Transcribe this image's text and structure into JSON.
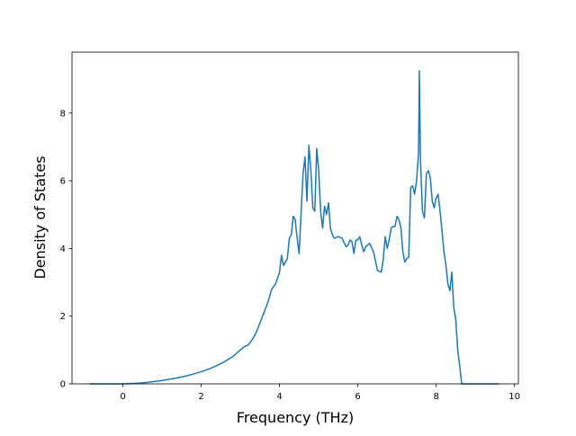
{
  "chart_data": {
    "type": "line",
    "title": "",
    "xlabel": "Frequency (THz)",
    "ylabel": "Density of States",
    "xlim": [
      -1.3,
      10.1
    ],
    "ylim": [
      0,
      9.8
    ],
    "xticks": [
      0,
      2,
      4,
      6,
      8,
      10
    ],
    "yticks": [
      0,
      2,
      4,
      6,
      8
    ],
    "grid": false,
    "legend": "none",
    "series": [
      {
        "color": "#1f77b4",
        "x": [
          -0.85,
          -0.6,
          -0.4,
          -0.2,
          0.0,
          0.2,
          0.4,
          0.6,
          0.8,
          1.0,
          1.2,
          1.4,
          1.6,
          1.8,
          2.0,
          2.2,
          2.4,
          2.6,
          2.8,
          2.9,
          3.0,
          3.1,
          3.2,
          3.3,
          3.4,
          3.5,
          3.6,
          3.7,
          3.8,
          3.9,
          4.0,
          4.05,
          4.1,
          4.2,
          4.25,
          4.3,
          4.35,
          4.4,
          4.45,
          4.5,
          4.6,
          4.65,
          4.7,
          4.75,
          4.8,
          4.85,
          4.9,
          4.95,
          5.0,
          5.05,
          5.1,
          5.15,
          5.2,
          5.25,
          5.3,
          5.35,
          5.4,
          5.5,
          5.6,
          5.7,
          5.75,
          5.8,
          5.85,
          5.9,
          5.95,
          6.0,
          6.05,
          6.1,
          6.15,
          6.2,
          6.3,
          6.4,
          6.5,
          6.6,
          6.65,
          6.7,
          6.75,
          6.8,
          6.85,
          6.9,
          6.95,
          7.0,
          7.05,
          7.1,
          7.15,
          7.2,
          7.25,
          7.3,
          7.35,
          7.4,
          7.45,
          7.5,
          7.55,
          7.57,
          7.6,
          7.65,
          7.7,
          7.75,
          7.8,
          7.85,
          7.9,
          7.95,
          8.0,
          8.05,
          8.1,
          8.15,
          8.2,
          8.25,
          8.3,
          8.35,
          8.4,
          8.45,
          8.5,
          8.55,
          8.6,
          8.65,
          8.7,
          9.0,
          9.3,
          9.6
        ],
        "y": [
          0,
          0,
          0,
          0,
          0,
          0.01,
          0.02,
          0.04,
          0.07,
          0.1,
          0.14,
          0.18,
          0.23,
          0.29,
          0.36,
          0.44,
          0.54,
          0.66,
          0.8,
          0.9,
          1.0,
          1.1,
          1.15,
          1.3,
          1.5,
          1.8,
          2.1,
          2.4,
          2.8,
          2.95,
          3.3,
          3.8,
          3.5,
          3.7,
          4.3,
          4.4,
          4.95,
          4.85,
          4.3,
          3.85,
          6.2,
          6.7,
          5.4,
          7.05,
          6.3,
          5.2,
          5.1,
          6.95,
          6.3,
          5.1,
          4.6,
          5.25,
          5.0,
          5.35,
          4.6,
          4.4,
          4.3,
          4.35,
          4.3,
          4.05,
          4.1,
          4.25,
          4.2,
          3.85,
          4.25,
          4.25,
          4.35,
          4.1,
          3.9,
          4.05,
          4.15,
          3.9,
          3.35,
          3.3,
          3.7,
          4.35,
          4.0,
          4.25,
          4.6,
          4.65,
          4.65,
          4.95,
          4.85,
          4.6,
          3.9,
          3.6,
          3.7,
          3.75,
          5.8,
          5.85,
          5.6,
          6.0,
          6.8,
          9.25,
          6.6,
          5.1,
          4.9,
          6.2,
          6.3,
          6.1,
          5.4,
          5.2,
          5.5,
          5.6,
          5.1,
          4.5,
          3.9,
          3.5,
          2.95,
          2.75,
          3.3,
          2.25,
          1.9,
          1.0,
          0.55,
          0.0,
          0,
          0,
          0,
          0
        ]
      }
    ]
  }
}
